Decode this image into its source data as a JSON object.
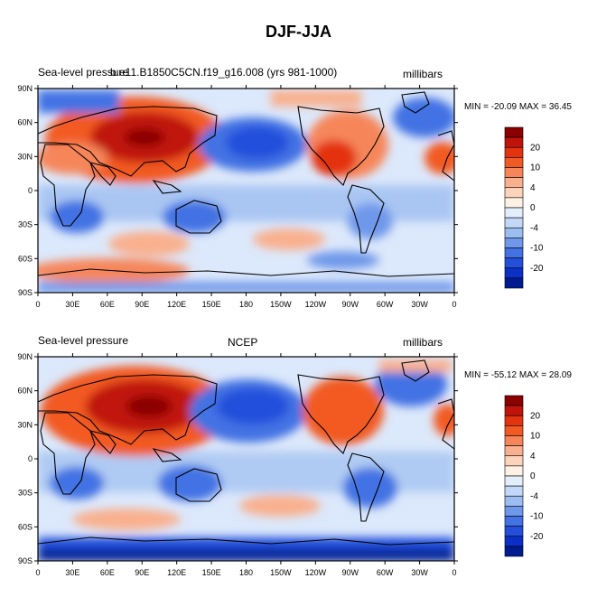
{
  "title": "DJF-JJA",
  "panels": [
    {
      "left_label": "Sea-level pressure",
      "center_label": "b.e11.B1850C5CN.f19_g16.008 (yrs 981-1000)",
      "right_label": "millibars",
      "minmax": "MIN = -20.09 MAX =  36.45"
    },
    {
      "left_label": "Sea-level pressure",
      "center_label": "NCEP",
      "right_label": "millibars",
      "minmax": "MIN = -55.12 MAX = 28.09"
    }
  ],
  "lat_labels": [
    "90N",
    "60N",
    "30N",
    "0",
    "30S",
    "60S",
    "90S"
  ],
  "lon_labels": [
    "0",
    "30E",
    "60E",
    "90E",
    "120E",
    "150E",
    "180",
    "150W",
    "120W",
    "90W",
    "60W",
    "30W",
    "0"
  ],
  "colorbar": {
    "labels": [
      "20",
      "10",
      "4",
      "0",
      "-4",
      "-10",
      "-20"
    ],
    "colors": [
      "#8b0000",
      "#c0140a",
      "#e3330f",
      "#f25a24",
      "#f6865a",
      "#f9b08e",
      "#fbd4bb",
      "#fdf1e6",
      "#e3eefc",
      "#c3d8f6",
      "#9cbdf0",
      "#6f98ea",
      "#4272e3",
      "#234fdb",
      "#0c2fc6",
      "#001b90"
    ]
  },
  "colors": {
    "warm": "#e3471a",
    "cold": "#2a58e0",
    "neutral": "#dde9fb"
  }
}
